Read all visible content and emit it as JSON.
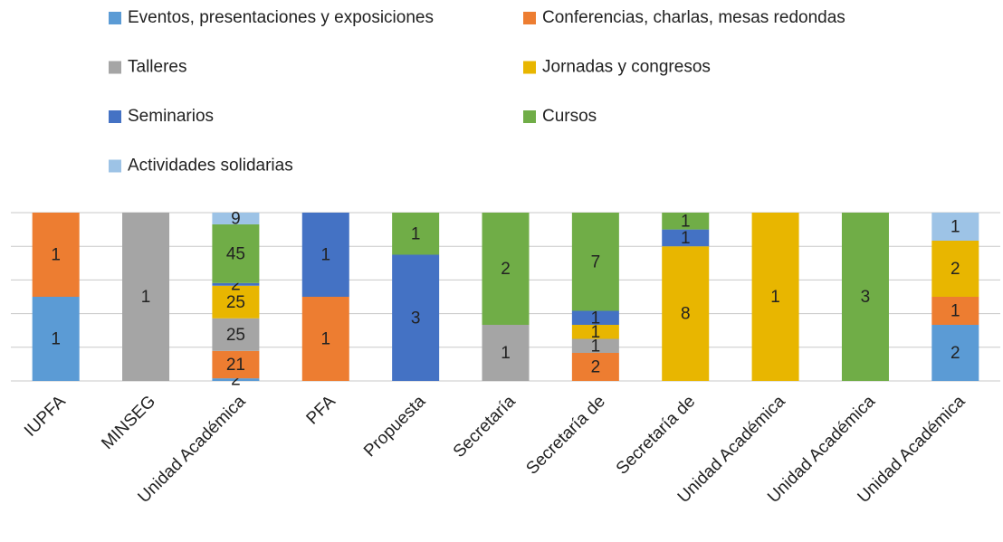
{
  "chart_data": {
    "type": "stacked_bar_100",
    "categories": [
      "IUPFA",
      "MINSEG",
      "Unidad Académica",
      "PFA",
      "Propuesta",
      "Secretaría",
      "Secretaría de",
      "Secretaría de",
      "Unidad Académica",
      "Unidad Académica",
      "Unidad Académica"
    ],
    "series": [
      {
        "name": "Eventos, presentaciones y exposiciones",
        "color": "#5b9bd5",
        "values": [
          1,
          null,
          2,
          null,
          null,
          null,
          null,
          null,
          null,
          null,
          2
        ]
      },
      {
        "name": "Conferencias, charlas, mesas redondas",
        "color": "#ed7d31",
        "values": [
          1,
          null,
          21,
          1,
          null,
          null,
          2,
          null,
          null,
          null,
          1
        ]
      },
      {
        "name": "Talleres",
        "color": "#a5a5a5",
        "values": [
          null,
          1,
          25,
          null,
          null,
          1,
          1,
          null,
          null,
          null,
          null
        ]
      },
      {
        "name": "Jornadas y congresos",
        "color": "#e8b600",
        "values": [
          null,
          null,
          25,
          null,
          null,
          null,
          1,
          8,
          1,
          null,
          2
        ]
      },
      {
        "name": "Seminarios",
        "color": "#4472c4",
        "values": [
          null,
          null,
          2,
          1,
          3,
          null,
          1,
          1,
          null,
          null,
          null
        ]
      },
      {
        "name": "Cursos",
        "color": "#70ad47",
        "values": [
          null,
          null,
          45,
          null,
          1,
          2,
          7,
          1,
          null,
          3,
          null
        ]
      },
      {
        "name": "Actividades solidarias",
        "color": "#9dc3e6",
        "values": [
          null,
          null,
          9,
          null,
          null,
          null,
          null,
          null,
          null,
          null,
          1
        ]
      }
    ],
    "ylim": [
      0,
      100
    ],
    "yticks": [
      0,
      20,
      40,
      60,
      80,
      100
    ],
    "grid": true,
    "legend": "top"
  }
}
